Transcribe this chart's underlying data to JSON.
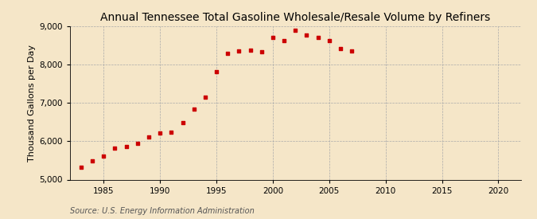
{
  "title": "Annual Tennessee Total Gasoline Wholesale/Resale Volume by Refiners",
  "ylabel": "Thousand Gallons per Day",
  "source": "Source: U.S. Energy Information Administration",
  "background_color": "#f5e6c8",
  "marker_color": "#cc0000",
  "years": [
    1983,
    1984,
    1985,
    1986,
    1987,
    1988,
    1989,
    1990,
    1991,
    1992,
    1993,
    1994,
    1995,
    1996,
    1997,
    1998,
    1999,
    2000,
    2001,
    2002,
    2003,
    2004,
    2005,
    2006,
    2007
  ],
  "values": [
    5330,
    5480,
    5620,
    5830,
    5870,
    5950,
    6120,
    6210,
    6230,
    6490,
    6830,
    7160,
    7810,
    8290,
    8350,
    8380,
    8340,
    8700,
    8620,
    8900,
    8780,
    8700,
    8620,
    8410,
    8360
  ],
  "ylim": [
    5000,
    9000
  ],
  "xlim": [
    1982,
    2022
  ],
  "yticks": [
    5000,
    6000,
    7000,
    8000,
    9000
  ],
  "xticks": [
    1985,
    1990,
    1995,
    2000,
    2005,
    2010,
    2015,
    2020
  ],
  "title_fontsize": 10,
  "label_fontsize": 8,
  "tick_fontsize": 7.5,
  "source_fontsize": 7
}
